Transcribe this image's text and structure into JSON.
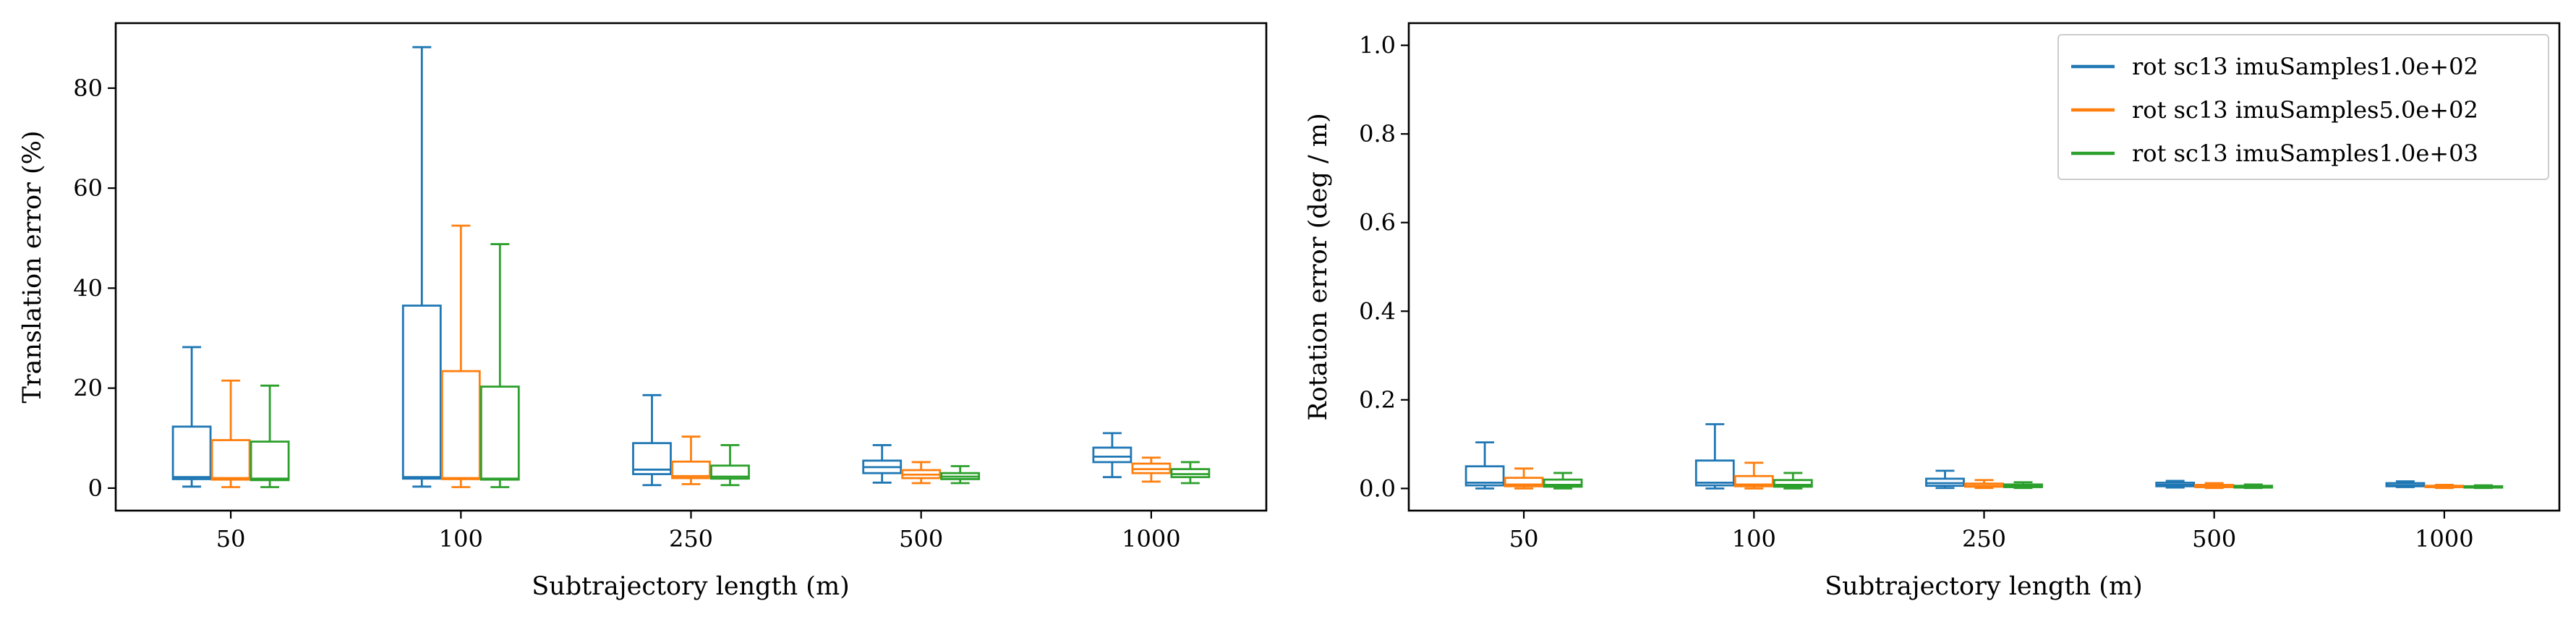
{
  "chart_data": [
    {
      "type": "box",
      "xlabel": "Subtrajectory length (m)",
      "ylabel": "Translation error (%)",
      "categories": [
        "50",
        "100",
        "250",
        "500",
        "1000"
      ],
      "ylim": [
        -4.5,
        93
      ],
      "yticks": [
        0,
        20,
        40,
        60,
        80
      ],
      "grid": false,
      "series": [
        {
          "color": "#1f77b4",
          "boxes": [
            {
              "whisker_low": 0.3,
              "q1": 1.8,
              "median": 2.2,
              "q3": 12.3,
              "whisker_high": 28.2
            },
            {
              "whisker_low": 0.3,
              "q1": 1.9,
              "median": 2.2,
              "q3": 36.5,
              "whisker_high": 88.2
            },
            {
              "whisker_low": 0.6,
              "q1": 2.8,
              "median": 3.7,
              "q3": 9.0,
              "whisker_high": 18.6
            },
            {
              "whisker_low": 1.1,
              "q1": 3.0,
              "median": 4.2,
              "q3": 5.5,
              "whisker_high": 8.6
            },
            {
              "whisker_low": 2.2,
              "q1": 5.2,
              "median": 6.3,
              "q3": 8.1,
              "whisker_high": 11.0
            }
          ]
        },
        {
          "color": "#ff7f0e",
          "boxes": [
            {
              "whisker_low": 0.2,
              "q1": 1.7,
              "median": 2.0,
              "q3": 9.6,
              "whisker_high": 21.5
            },
            {
              "whisker_low": 0.2,
              "q1": 1.8,
              "median": 2.0,
              "q3": 23.4,
              "whisker_high": 52.5
            },
            {
              "whisker_low": 0.8,
              "q1": 2.0,
              "median": 2.4,
              "q3": 5.3,
              "whisker_high": 10.3
            },
            {
              "whisker_low": 1.0,
              "q1": 2.0,
              "median": 2.7,
              "q3": 3.6,
              "whisker_high": 5.2
            },
            {
              "whisker_low": 1.3,
              "q1": 3.0,
              "median": 3.8,
              "q3": 4.9,
              "whisker_high": 6.1
            }
          ]
        },
        {
          "color": "#2ca02c",
          "boxes": [
            {
              "whisker_low": 0.2,
              "q1": 1.6,
              "median": 1.9,
              "q3": 9.3,
              "whisker_high": 20.5
            },
            {
              "whisker_low": 0.2,
              "q1": 1.7,
              "median": 1.9,
              "q3": 20.3,
              "whisker_high": 48.8
            },
            {
              "whisker_low": 0.6,
              "q1": 1.9,
              "median": 2.3,
              "q3": 4.5,
              "whisker_high": 8.6
            },
            {
              "whisker_low": 1.0,
              "q1": 1.8,
              "median": 2.3,
              "q3": 3.0,
              "whisker_high": 4.4
            },
            {
              "whisker_low": 1.0,
              "q1": 2.2,
              "median": 2.8,
              "q3": 3.8,
              "whisker_high": 5.2
            }
          ]
        }
      ]
    },
    {
      "type": "box",
      "xlabel": "Subtrajectory length (m)",
      "ylabel": "Rotation error (deg / m)",
      "categories": [
        "50",
        "100",
        "250",
        "500",
        "1000"
      ],
      "ylim": [
        -0.05,
        1.05
      ],
      "yticks": [
        0.0,
        0.2,
        0.4,
        0.6,
        0.8,
        1.0
      ],
      "grid": false,
      "legend_position": "top-right",
      "series": [
        {
          "name": "rot sc13 imuSamples1.0e+02",
          "color": "#1f77b4",
          "boxes": [
            {
              "whisker_low": 0.0,
              "q1": 0.007,
              "median": 0.013,
              "q3": 0.05,
              "whisker_high": 0.104
            },
            {
              "whisker_low": 0.0,
              "q1": 0.007,
              "median": 0.013,
              "q3": 0.063,
              "whisker_high": 0.145
            },
            {
              "whisker_low": 0.001,
              "q1": 0.006,
              "median": 0.012,
              "q3": 0.022,
              "whisker_high": 0.04
            },
            {
              "whisker_low": 0.002,
              "q1": 0.005,
              "median": 0.008,
              "q3": 0.013,
              "whisker_high": 0.017
            },
            {
              "whisker_low": 0.003,
              "q1": 0.005,
              "median": 0.007,
              "q3": 0.012,
              "whisker_high": 0.016
            }
          ]
        },
        {
          "name": "rot sc13 imuSamples5.0e+02",
          "color": "#ff7f0e",
          "boxes": [
            {
              "whisker_low": 0.0,
              "q1": 0.005,
              "median": 0.009,
              "q3": 0.024,
              "whisker_high": 0.045
            },
            {
              "whisker_low": 0.0,
              "q1": 0.005,
              "median": 0.009,
              "q3": 0.028,
              "whisker_high": 0.058
            },
            {
              "whisker_low": 0.001,
              "q1": 0.004,
              "median": 0.006,
              "q3": 0.011,
              "whisker_high": 0.019
            },
            {
              "whisker_low": 0.001,
              "q1": 0.003,
              "median": 0.005,
              "q3": 0.008,
              "whisker_high": 0.012
            },
            {
              "whisker_low": 0.001,
              "q1": 0.003,
              "median": 0.004,
              "q3": 0.006,
              "whisker_high": 0.008
            }
          ]
        },
        {
          "name": "rot sc13 imuSamples1.0e+03",
          "color": "#2ca02c",
          "boxes": [
            {
              "whisker_low": 0.0,
              "q1": 0.004,
              "median": 0.008,
              "q3": 0.02,
              "whisker_high": 0.035
            },
            {
              "whisker_low": 0.0,
              "q1": 0.004,
              "median": 0.008,
              "q3": 0.019,
              "whisker_high": 0.035
            },
            {
              "whisker_low": 0.001,
              "q1": 0.003,
              "median": 0.005,
              "q3": 0.009,
              "whisker_high": 0.014
            },
            {
              "whisker_low": 0.001,
              "q1": 0.002,
              "median": 0.004,
              "q3": 0.006,
              "whisker_high": 0.009
            },
            {
              "whisker_low": 0.001,
              "q1": 0.002,
              "median": 0.003,
              "q3": 0.005,
              "whisker_high": 0.007
            }
          ]
        }
      ]
    }
  ]
}
